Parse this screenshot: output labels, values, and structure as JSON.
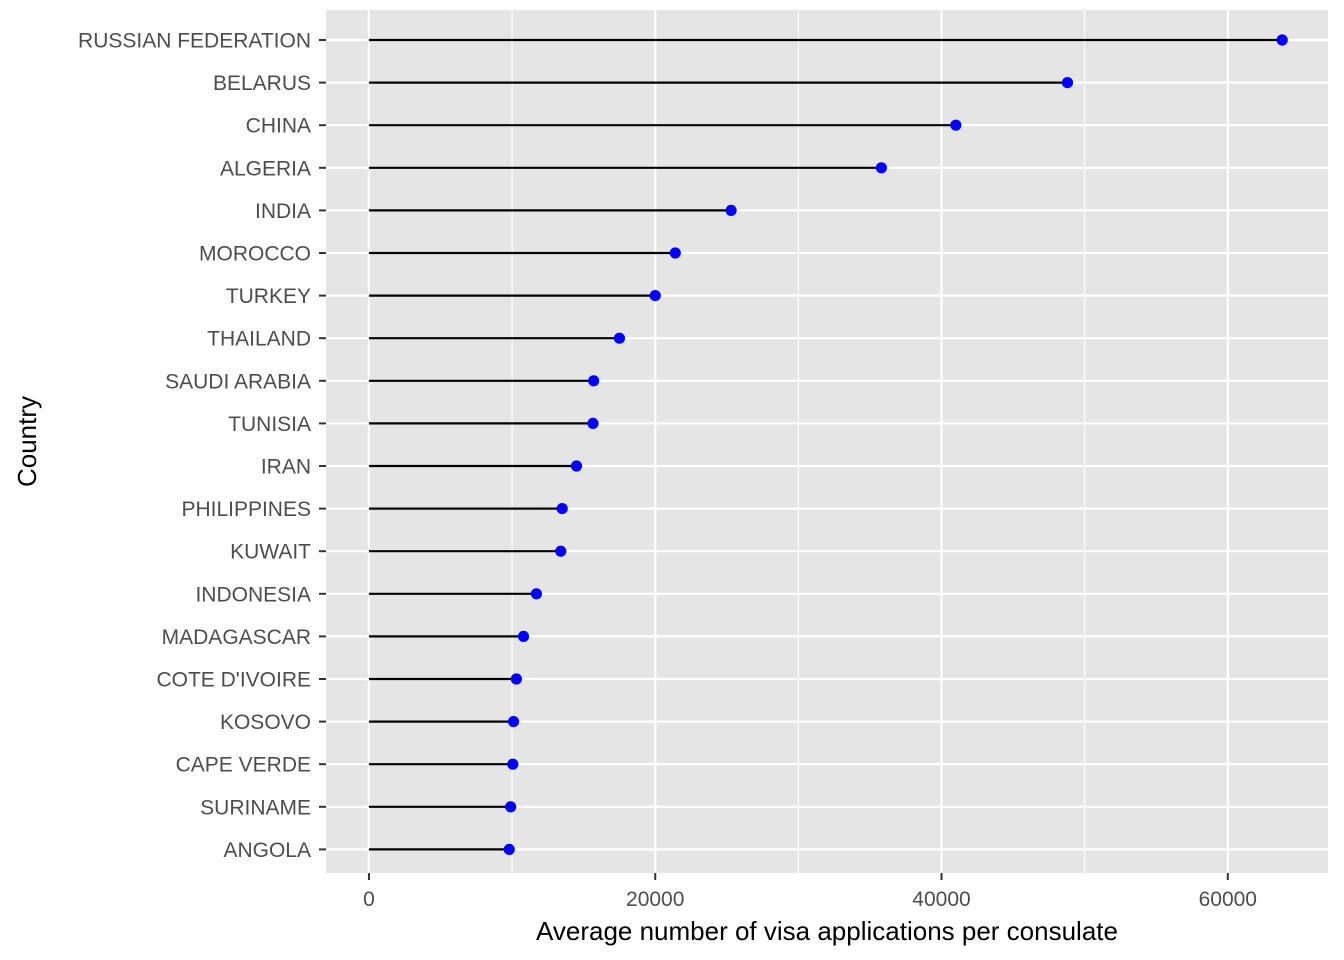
{
  "chart_data": {
    "type": "lollipop",
    "xlabel": "Average number of visa applications per consulate",
    "ylabel": "Country",
    "xlim": [
      -3000,
      67000
    ],
    "x_ticks": [
      0,
      20000,
      40000,
      60000
    ],
    "x_tick_labels": [
      "0",
      "20000",
      "40000",
      "60000"
    ],
    "grid": true,
    "categories": [
      "RUSSIAN FEDERATION",
      "BELARUS",
      "CHINA",
      "ALGERIA",
      "INDIA",
      "MOROCCO",
      "TURKEY",
      "THAILAND",
      "SAUDI ARABIA",
      "TUNISIA",
      "IRAN",
      "PHILIPPINES",
      "KUWAIT",
      "INDONESIA",
      "MADAGASCAR",
      "COTE D'IVOIRE",
      "KOSOVO",
      "CAPE VERDE",
      "SURINAME",
      "ANGOLA"
    ],
    "values": [
      63800,
      48800,
      41000,
      35800,
      25300,
      21400,
      20000,
      17500,
      15700,
      15650,
      14500,
      13500,
      13400,
      11700,
      10800,
      10300,
      10100,
      10050,
      9900,
      9800
    ],
    "point_color": "#0000ff",
    "segment_color": "#000000",
    "panel_color": "#e5e5e5",
    "grid_color": "#ffffff"
  }
}
